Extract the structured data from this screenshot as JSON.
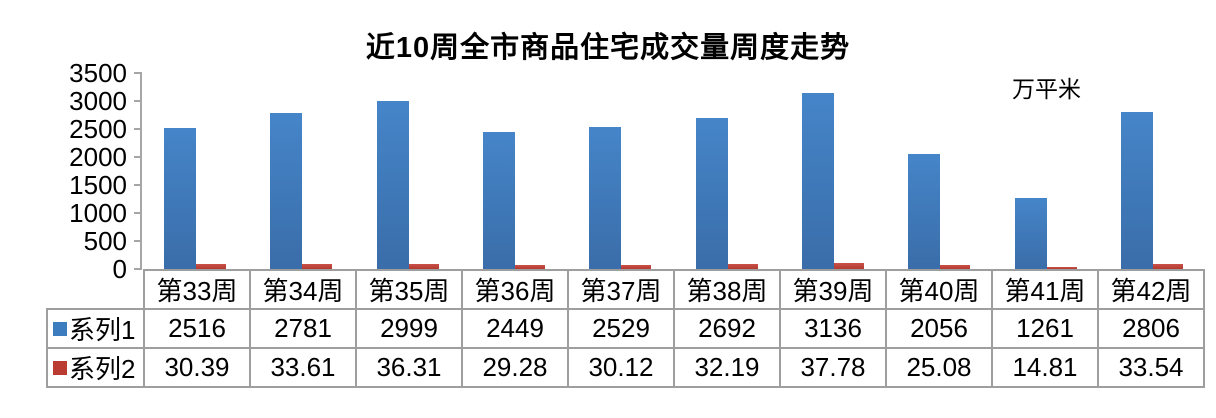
{
  "title": "近10周全市商品住宅成交量周度走势",
  "unit_label": "万平米",
  "colors": {
    "series1_bar_top": "#4585c9",
    "series1_bar_bottom": "#3a6da9",
    "series1_swatch": "#3e7cc0",
    "series2_bar_top": "#cb5148",
    "series2_bar_bottom": "#b23a31",
    "series2_swatch": "#ba3b31",
    "axis_line": "#a6a6a6",
    "table_border": "#9e9e9e",
    "text": "#000000"
  },
  "chart_data": {
    "type": "bar",
    "title": "近10周全市商品住宅成交量周度走势",
    "unit": "万平米",
    "categories": [
      "第33周",
      "第34周",
      "第35周",
      "第36周",
      "第37周",
      "第38周",
      "第39周",
      "第40周",
      "第41周",
      "第42周"
    ],
    "series": [
      {
        "name": "系列1",
        "color": "#3e7cc0",
        "values": [
          2516,
          2781,
          2999,
          2449,
          2529,
          2692,
          3136,
          2056,
          1261,
          2806
        ]
      },
      {
        "name": "系列2",
        "color": "#ba3b31",
        "values": [
          30.39,
          33.61,
          36.31,
          29.28,
          30.12,
          32.19,
          37.78,
          25.08,
          14.81,
          33.54
        ]
      }
    ],
    "xlabel": "",
    "ylabel": "",
    "ylim": [
      0,
      3500
    ],
    "y_ticks": [
      0,
      500,
      1000,
      1500,
      2000,
      2500,
      3000,
      3500
    ],
    "grid": false,
    "legend_position": "table-left",
    "data_table_shown": true
  }
}
